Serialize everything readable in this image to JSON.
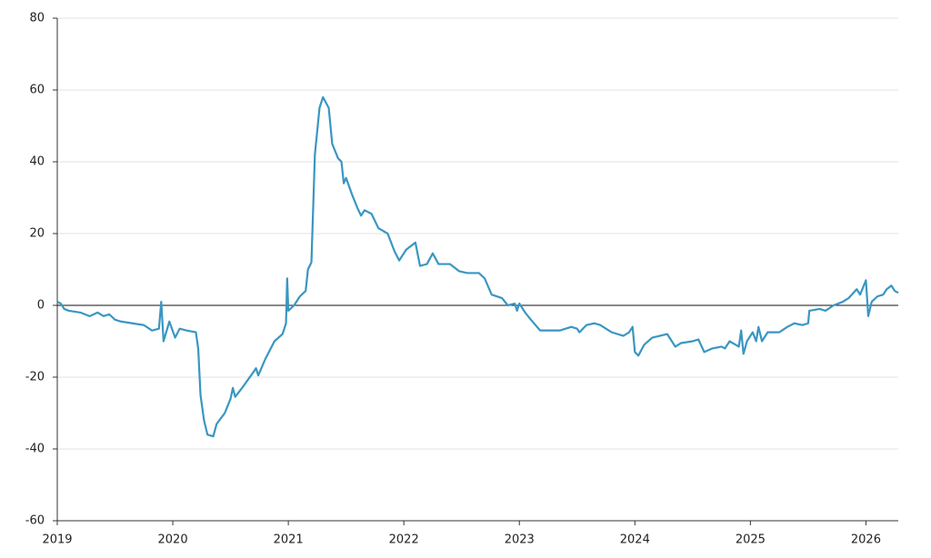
{
  "chart_data": {
    "type": "line",
    "color": "#3a96c2",
    "grid": true,
    "zero_line": true,
    "xlim": [
      2019,
      2026.28
    ],
    "xticks": [
      2019,
      2020,
      2021,
      2022,
      2023,
      2024,
      2025,
      2026
    ],
    "ylim": [
      -60,
      80
    ],
    "yticks": [
      -60,
      -40,
      -20,
      0,
      20,
      40,
      60,
      80
    ],
    "x": [
      2019.0,
      2019.03,
      2019.06,
      2019.1,
      2019.2,
      2019.28,
      2019.35,
      2019.4,
      2019.45,
      2019.5,
      2019.55,
      2019.65,
      2019.75,
      2019.82,
      2019.88,
      2019.9,
      2019.92,
      2019.97,
      2020.02,
      2020.06,
      2020.12,
      2020.2,
      2020.22,
      2020.24,
      2020.27,
      2020.3,
      2020.35,
      2020.38,
      2020.45,
      2020.5,
      2020.52,
      2020.54,
      2020.6,
      2020.7,
      2020.72,
      2020.74,
      2020.8,
      2020.88,
      2020.95,
      2020.98,
      2020.99,
      2021.0,
      2021.05,
      2021.1,
      2021.15,
      2021.17,
      2021.2,
      2021.23,
      2021.27,
      2021.3,
      2021.35,
      2021.38,
      2021.43,
      2021.46,
      2021.48,
      2021.5,
      2021.55,
      2021.6,
      2021.63,
      2021.66,
      2021.72,
      2021.78,
      2021.86,
      2021.92,
      2021.96,
      2022.02,
      2022.1,
      2022.14,
      2022.2,
      2022.25,
      2022.3,
      2022.4,
      2022.48,
      2022.55,
      2022.6,
      2022.65,
      2022.7,
      2022.76,
      2022.85,
      2022.9,
      2022.96,
      2022.98,
      2023.0,
      2023.05,
      2023.1,
      2023.18,
      2023.25,
      2023.35,
      2023.45,
      2023.5,
      2023.52,
      2023.58,
      2023.65,
      2023.7,
      2023.8,
      2023.9,
      2023.95,
      2023.98,
      2024.0,
      2024.03,
      2024.08,
      2024.15,
      2024.28,
      2024.32,
      2024.35,
      2024.4,
      2024.5,
      2024.55,
      2024.6,
      2024.67,
      2024.75,
      2024.78,
      2024.82,
      2024.9,
      2024.92,
      2024.94,
      2024.97,
      2025.02,
      2025.05,
      2025.07,
      2025.1,
      2025.15,
      2025.25,
      2025.32,
      2025.38,
      2025.45,
      2025.5,
      2025.51,
      2025.6,
      2025.65,
      2025.72,
      2025.8,
      2025.85,
      2025.92,
      2025.95,
      2026.0,
      2026.02,
      2026.05,
      2026.1,
      2026.15,
      2026.18,
      2026.22,
      2026.25,
      2026.28
    ],
    "values": [
      1,
      0.5,
      -1,
      -1.5,
      -2,
      -3,
      -2,
      -3,
      -2.5,
      -4,
      -4.5,
      -5,
      -5.5,
      -7,
      -6.5,
      1,
      -10,
      -4.5,
      -9,
      -6.5,
      -7,
      -7.5,
      -12,
      -25,
      -32,
      -36,
      -36.5,
      -33,
      -30,
      -26,
      -23,
      -25.5,
      -23,
      -18.5,
      -17.5,
      -19.5,
      -15,
      -10,
      -8,
      -5,
      7.5,
      -1.5,
      0,
      2.5,
      4,
      10,
      12,
      42,
      55,
      58,
      55,
      45,
      41,
      40,
      34,
      35.5,
      31,
      27,
      25,
      26.5,
      25.5,
      21.5,
      20,
      15,
      12.5,
      15.5,
      17.5,
      11,
      11.5,
      14.5,
      11.5,
      11.5,
      9.5,
      9,
      9,
      9,
      7.5,
      3,
      2,
      0,
      0.5,
      -1.5,
      0.5,
      -2,
      -4,
      -7,
      -7,
      -7,
      -6,
      -6.5,
      -7.5,
      -5.5,
      -5,
      -5.5,
      -7.5,
      -8.5,
      -7.5,
      -6,
      -13,
      -14,
      -11,
      -9,
      -8,
      -10,
      -11.5,
      -10.5,
      -10,
      -9.5,
      -13,
      -12,
      -11.5,
      -12,
      -10,
      -11.5,
      -7,
      -13.5,
      -10,
      -7.5,
      -10,
      -6,
      -10,
      -7.5,
      -7.5,
      -6,
      -5,
      -5.5,
      -5,
      -1.5,
      -1,
      -1.5,
      0,
      1,
      2,
      4.5,
      3,
      7,
      -3,
      1,
      2.5,
      3,
      4.5,
      5.5,
      4,
      3.5
    ]
  }
}
